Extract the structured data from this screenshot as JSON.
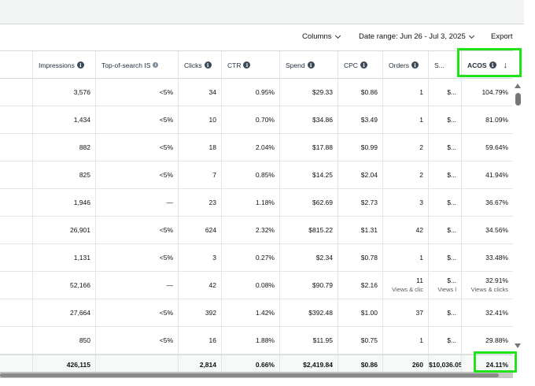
{
  "toolbar": {
    "columns_label": "Columns",
    "date_range_label": "Date range: Jun 26 - Jul 3, 2025",
    "export_label": "Export"
  },
  "columns": [
    {
      "key": "impressions",
      "label": "Impressions",
      "info": true
    },
    {
      "key": "top_of_search",
      "label": "Top-of-search IS",
      "info": true
    },
    {
      "key": "clicks",
      "label": "Clicks",
      "info": true
    },
    {
      "key": "ctr",
      "label": "CTR",
      "info": true
    },
    {
      "key": "spend",
      "label": "Spend",
      "info": true
    },
    {
      "key": "cpc",
      "label": "CPC",
      "info": true
    },
    {
      "key": "orders",
      "label": "Orders",
      "info": true
    },
    {
      "key": "sales",
      "label": "S...",
      "info": false
    },
    {
      "key": "acos",
      "label": "ACOS",
      "info": true,
      "sorted": "desc"
    }
  ],
  "sort_indicator": "↓",
  "info_glyph": "i",
  "rows": [
    {
      "impressions": "3,576",
      "top_of_search": "<5%",
      "clicks": "34",
      "ctr": "0.95%",
      "spend": "$29.33",
      "cpc": "$0.86",
      "orders": "1",
      "sales": "$...",
      "acos": "104.79%"
    },
    {
      "impressions": "1,434",
      "top_of_search": "<5%",
      "clicks": "10",
      "ctr": "0.70%",
      "spend": "$34.86",
      "cpc": "$3.49",
      "orders": "1",
      "sales": "$...",
      "acos": "81.09%"
    },
    {
      "impressions": "882",
      "top_of_search": "<5%",
      "clicks": "18",
      "ctr": "2.04%",
      "spend": "$17.88",
      "cpc": "$0.99",
      "orders": "2",
      "sales": "$...",
      "acos": "59.64%"
    },
    {
      "impressions": "825",
      "top_of_search": "<5%",
      "clicks": "7",
      "ctr": "0.85%",
      "spend": "$14.25",
      "cpc": "$2.04",
      "orders": "2",
      "sales": "$...",
      "acos": "41.94%"
    },
    {
      "impressions": "1,946",
      "top_of_search": "—",
      "clicks": "23",
      "ctr": "1.18%",
      "spend": "$62.69",
      "cpc": "$2.73",
      "orders": "3",
      "sales": "$...",
      "acos": "36.67%"
    },
    {
      "impressions": "26,901",
      "top_of_search": "<5%",
      "clicks": "624",
      "ctr": "2.32%",
      "spend": "$815.22",
      "cpc": "$1.31",
      "orders": "42",
      "sales": "$...",
      "acos": "34.56%"
    },
    {
      "impressions": "1,131",
      "top_of_search": "<5%",
      "clicks": "3",
      "ctr": "0.27%",
      "spend": "$2.34",
      "cpc": "$0.78",
      "orders": "1",
      "sales": "$...",
      "acos": "33.48%"
    },
    {
      "impressions": "52,166",
      "top_of_search": "—",
      "clicks": "42",
      "ctr": "0.08%",
      "spend": "$90.79",
      "cpc": "$2.16",
      "orders": "11",
      "orders_sub": "Views & clic",
      "sales": "$...",
      "sales_sub": "Views l",
      "acos": "32.91%",
      "acos_sub": "Views & clicks"
    },
    {
      "impressions": "27,664",
      "top_of_search": "<5%",
      "clicks": "392",
      "ctr": "1.42%",
      "spend": "$392.48",
      "cpc": "$1.00",
      "orders": "37",
      "sales": "$...",
      "acos": "32.41%"
    },
    {
      "impressions": "850",
      "top_of_search": "<5%",
      "clicks": "16",
      "ctr": "1.88%",
      "spend": "$11.95",
      "cpc": "$0.75",
      "orders": "1",
      "sales": "$...",
      "acos": "29.88%"
    }
  ],
  "totals": {
    "impressions": "426,115",
    "top_of_search": "",
    "clicks": "2,814",
    "ctr": "0.66%",
    "spend": "$2,419.84",
    "cpc": "$0.86",
    "orders": "260",
    "sales": "$10,036.05",
    "acos": "24.11%"
  },
  "colors": {
    "highlight": "#22e31a",
    "header_text": "#232f3e",
    "border": "#e3e6e6"
  }
}
